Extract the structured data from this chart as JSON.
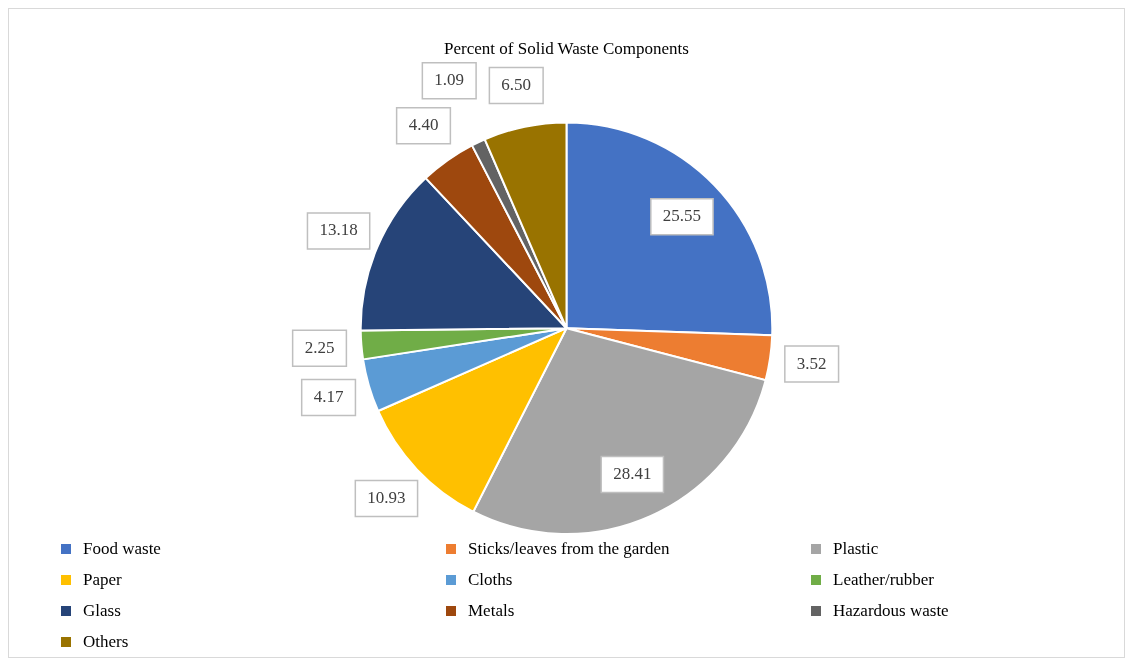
{
  "chart_data": {
    "type": "pie",
    "title": "Percent of Solid Waste Components",
    "categories": [
      "Food waste",
      "Sticks/leaves from the garden",
      "Plastic",
      "Paper",
      "Cloths",
      "Leather/rubber",
      "Glass",
      "Metals",
      "Hazardous waste",
      "Others"
    ],
    "values": [
      25.55,
      3.52,
      28.41,
      10.93,
      4.17,
      2.25,
      13.18,
      4.4,
      1.09,
      6.5
    ],
    "value_labels": [
      "25.55",
      "3.52",
      "28.41",
      "10.93",
      "4.17",
      "2.25",
      "13.18",
      "4.40",
      "1.09",
      "6.50"
    ],
    "colors": [
      "#4472c4",
      "#ed7d31",
      "#a5a5a5",
      "#ffc000",
      "#5b9bd5",
      "#70ad47",
      "#264478",
      "#9e480e",
      "#636363",
      "#997300"
    ],
    "legend": "bottom"
  }
}
